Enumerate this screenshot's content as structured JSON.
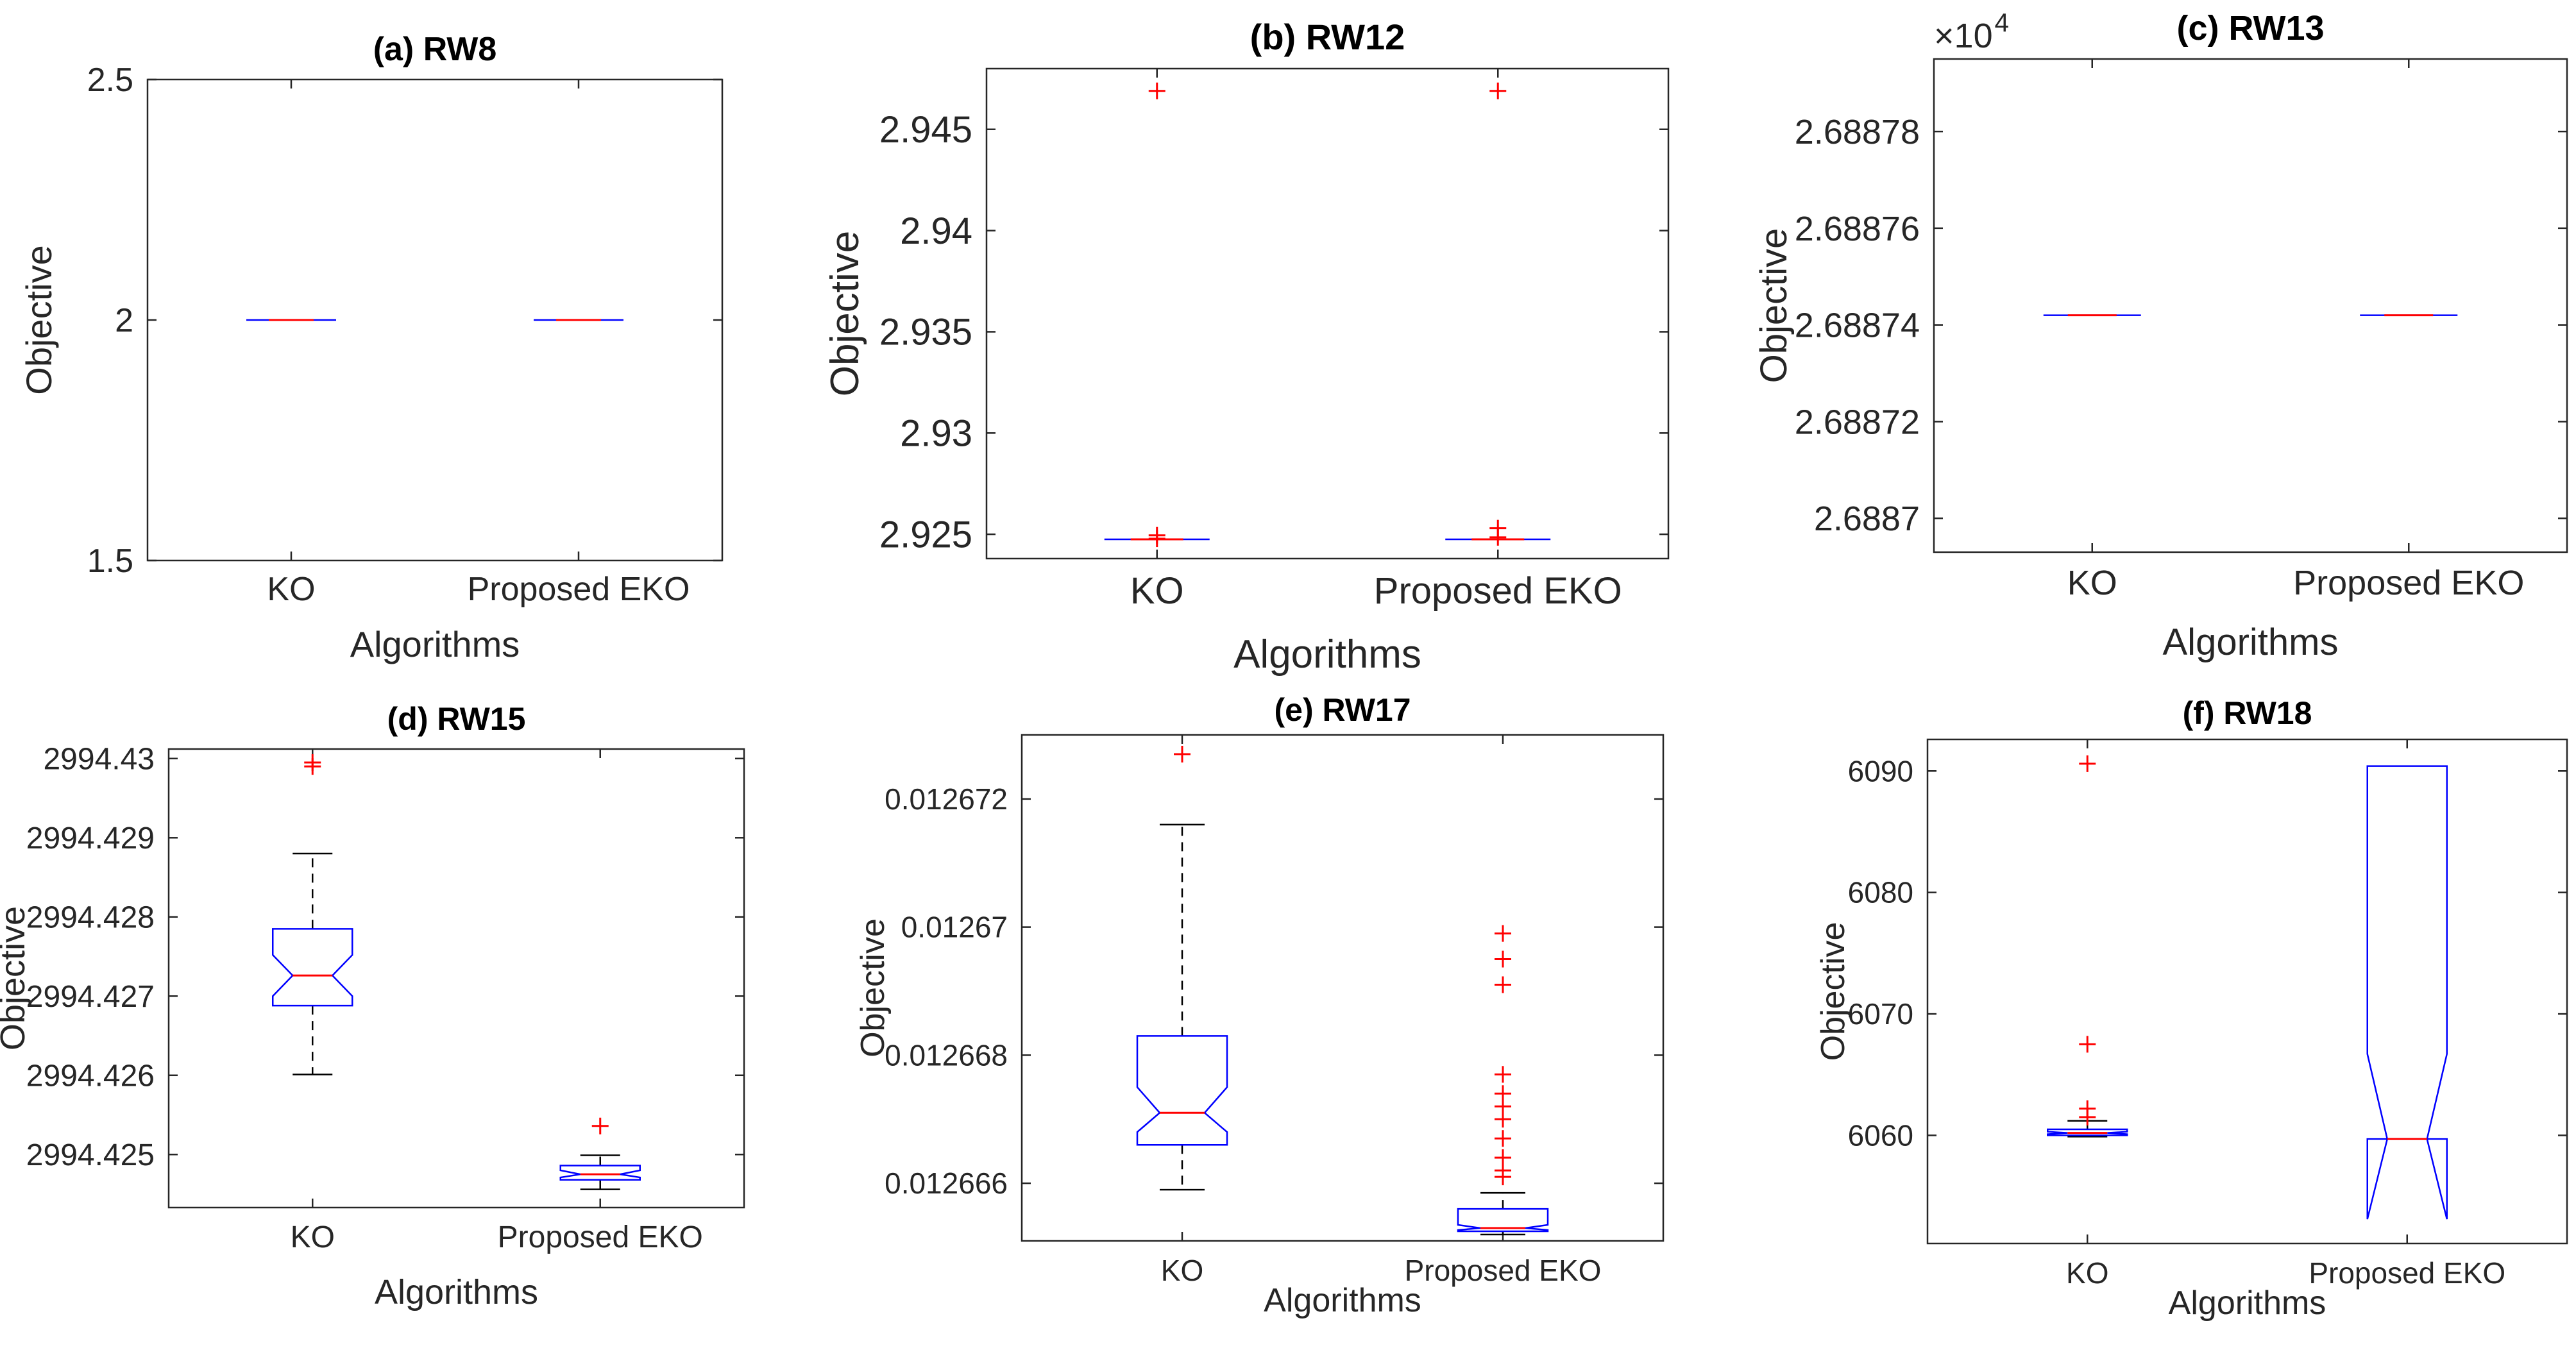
{
  "chart_data": [
    {
      "id": "a",
      "type": "box",
      "title": "(a) RW8",
      "xlabel": "Algorithms",
      "ylabel": "Objective",
      "categories": [
        "KO",
        "Proposed EKO"
      ],
      "ylim": [
        1.5,
        2.5
      ],
      "yticks": [
        1.5,
        2,
        2.5
      ],
      "ytick_labels": [
        "1.5",
        "2",
        "2.5"
      ],
      "exponent_label": "",
      "boxes": [
        {
          "category": "KO",
          "q1": 2.0,
          "median": 2.0,
          "q3": 2.0,
          "whisker_low": 2.0,
          "whisker_high": 2.0,
          "notch_low": 2.0,
          "notch_high": 2.0,
          "outliers": []
        },
        {
          "category": "Proposed EKO",
          "q1": 2.0,
          "median": 2.0,
          "q3": 2.0,
          "whisker_low": 2.0,
          "whisker_high": 2.0,
          "notch_low": 2.0,
          "notch_high": 2.0,
          "outliers": []
        }
      ]
    },
    {
      "id": "b",
      "type": "box",
      "title": "(b) RW12",
      "xlabel": "Algorithms",
      "ylabel": "Objective",
      "categories": [
        "KO",
        "Proposed EKO"
      ],
      "ylim": [
        2.9238,
        2.948
      ],
      "yticks": [
        2.925,
        2.93,
        2.935,
        2.94,
        2.945
      ],
      "ytick_labels": [
        "2.925",
        "2.93",
        "2.935",
        "2.94",
        "2.945"
      ],
      "exponent_label": "",
      "boxes": [
        {
          "category": "KO",
          "q1": 2.92475,
          "median": 2.92475,
          "q3": 2.92475,
          "whisker_low": 2.92475,
          "whisker_high": 2.92475,
          "notch_low": 2.92475,
          "notch_high": 2.92475,
          "outliers": [
            2.9469,
            2.92495,
            2.92478
          ]
        },
        {
          "category": "Proposed EKO",
          "q1": 2.92475,
          "median": 2.92475,
          "q3": 2.92475,
          "whisker_low": 2.92475,
          "whisker_high": 2.92475,
          "notch_low": 2.92475,
          "notch_high": 2.92475,
          "outliers": [
            2.9469,
            2.9253,
            2.92485
          ]
        }
      ]
    },
    {
      "id": "c",
      "type": "box",
      "title": "(c) RW13",
      "xlabel": "Algorithms",
      "ylabel": "Objective",
      "categories": [
        "KO",
        "Proposed EKO"
      ],
      "ylim": [
        2.688693,
        2.688795
      ],
      "yticks": [
        2.6887,
        2.68872,
        2.68874,
        2.68876,
        2.68878
      ],
      "ytick_labels": [
        "2.6887",
        "2.68872",
        "2.68874",
        "2.68876",
        "2.68878"
      ],
      "exponent_label": "×10",
      "exponent_value": "4",
      "boxes": [
        {
          "category": "KO",
          "q1": 2.688742,
          "median": 2.688742,
          "q3": 2.688742,
          "whisker_low": 2.688742,
          "whisker_high": 2.688742,
          "notch_low": 2.688742,
          "notch_high": 2.688742,
          "outliers": []
        },
        {
          "category": "Proposed EKO",
          "q1": 2.688742,
          "median": 2.688742,
          "q3": 2.688742,
          "whisker_low": 2.688742,
          "whisker_high": 2.688742,
          "notch_low": 2.688742,
          "notch_high": 2.688742,
          "outliers": []
        }
      ]
    },
    {
      "id": "d",
      "type": "box",
      "title": "(d) RW15",
      "xlabel": "Algorithms",
      "ylabel": "Objective",
      "categories": [
        "KO",
        "Proposed EKO"
      ],
      "ylim": [
        2994.42433,
        2994.43012
      ],
      "yticks": [
        2994.425,
        2994.426,
        2994.427,
        2994.428,
        2994.429,
        2994.43
      ],
      "ytick_labels": [
        "2994.425",
        "2994.426",
        "2994.427",
        "2994.428",
        "2994.429",
        "2994.43"
      ],
      "exponent_label": "",
      "boxes": [
        {
          "category": "KO",
          "q1": 2994.42688,
          "median": 2994.42726,
          "q3": 2994.42785,
          "whisker_low": 2994.42601,
          "whisker_high": 2994.4288,
          "notch_low": 2994.427,
          "notch_high": 2994.42752,
          "outliers": [
            2994.42995,
            2994.4299
          ]
        },
        {
          "category": "Proposed EKO",
          "q1": 2994.42468,
          "median": 2994.42475,
          "q3": 2994.42486,
          "whisker_low": 2994.42456,
          "whisker_high": 2994.42499,
          "notch_low": 2994.42471,
          "notch_high": 2994.4248,
          "outliers": [
            2994.42536
          ]
        }
      ]
    },
    {
      "id": "e",
      "type": "box",
      "title": "(e) RW17",
      "xlabel": "Algorithms",
      "ylabel": "Objective",
      "categories": [
        "KO",
        "Proposed EKO"
      ],
      "ylim": [
        0.0126651,
        0.012673
      ],
      "yticks": [
        0.012666,
        0.012668,
        0.01267,
        0.012672
      ],
      "ytick_labels": [
        "0.012666",
        "0.012668",
        "0.01267",
        "0.012672"
      ],
      "exponent_label": "",
      "boxes": [
        {
          "category": "KO",
          "q1": 0.0126666,
          "median": 0.0126671,
          "q3": 0.0126683,
          "whisker_low": 0.0126659,
          "whisker_high": 0.0126716,
          "notch_low": 0.0126668,
          "notch_high": 0.0126675,
          "outliers": [
            0.0126727
          ]
        },
        {
          "category": "Proposed EKO",
          "q1": 0.01266525,
          "median": 0.0126653,
          "q3": 0.0126656,
          "whisker_low": 0.0126652,
          "whisker_high": 0.01266585,
          "notch_low": 0.01266527,
          "notch_high": 0.01266535,
          "outliers": [
            0.0126699,
            0.0126695,
            0.0126691,
            0.0126677,
            0.0126674,
            0.0126672,
            0.012667,
            0.0126667,
            0.0126664,
            0.0126662,
            0.0126661
          ]
        }
      ]
    },
    {
      "id": "f",
      "type": "box",
      "title": "(f) RW18",
      "xlabel": "Algorithms",
      "ylabel": "Objective",
      "categories": [
        "KO",
        "Proposed EKO"
      ],
      "ylim": [
        6051.1,
        6092.6
      ],
      "yticks": [
        6060,
        6070,
        6080,
        6090
      ],
      "ytick_labels": [
        "6060",
        "6070",
        "6080",
        "6090"
      ],
      "exponent_label": "",
      "boxes": [
        {
          "category": "KO",
          "q1": 6060.0,
          "median": 6060.2,
          "q3": 6060.5,
          "whisker_low": 6059.9,
          "whisker_high": 6061.2,
          "notch_low": 6060.1,
          "notch_high": 6060.3,
          "outliers": [
            6090.6,
            6067.5,
            6062.2,
            6061.5
          ]
        },
        {
          "category": "Proposed EKO",
          "q1": 6059.7,
          "median": 6059.7,
          "q3": 6090.4,
          "whisker_low": 6059.7,
          "whisker_high": 6090.4,
          "notch_low": 6053.1,
          "notch_high": 6066.7,
          "outliers": []
        }
      ]
    }
  ]
}
